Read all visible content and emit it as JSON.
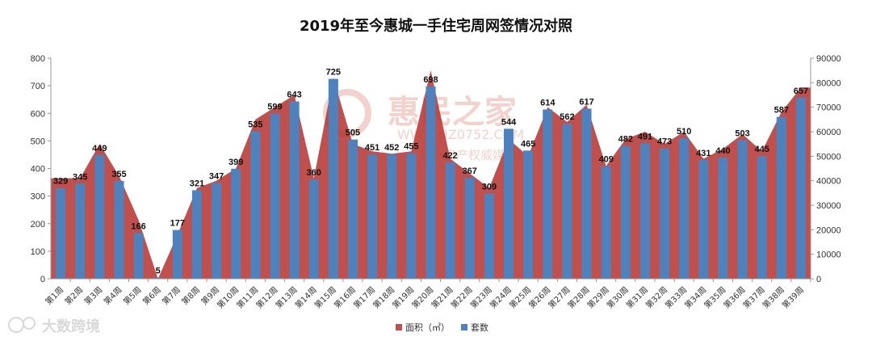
{
  "title": "2019年至今惠城一手住宅周网签情况对照",
  "watermark": {
    "brand": "惠民之家",
    "url": "WWW.HZ0752.COM",
    "slogan": "惠州房产权威媒体",
    "corner": "大数跨境"
  },
  "colors": {
    "area": "#c0504d",
    "bar": "#4f81bd",
    "watermark": "#cc3322"
  },
  "chart_data": {
    "type": "bar",
    "title": "2019年至今惠城一手住宅周网签情况对照",
    "categories": [
      "第1周",
      "第2周",
      "第3周",
      "第4周",
      "第5周",
      "第6周",
      "第7周",
      "第8周",
      "第9周",
      "第10周",
      "第11周",
      "第12周",
      "第13周",
      "第14周",
      "第15周",
      "第16周",
      "第17周",
      "第18周",
      "第19周",
      "第20周",
      "第21周",
      "第22周",
      "第23周",
      "第24周",
      "第25周",
      "第26周",
      "第27周",
      "第28周",
      "第29周",
      "第30周",
      "第31周",
      "第32周",
      "第33周",
      "第34周",
      "第35周",
      "第36周",
      "第37周",
      "第38周",
      "第39周"
    ],
    "series": [
      {
        "name": "面积（㎡）",
        "type": "area",
        "axis": "right",
        "values": [
          41000,
          41000,
          55000,
          42000,
          24000,
          0,
          18000,
          37000,
          40000,
          45000,
          65000,
          70000,
          75000,
          41000,
          82000,
          55000,
          52000,
          51000,
          52000,
          85000,
          49000,
          43000,
          37000,
          57000,
          50000,
          70000,
          64000,
          71000,
          46000,
          57000,
          60000,
          55000,
          60000,
          49000,
          53000,
          59000,
          52000,
          68000,
          78000
        ]
      },
      {
        "name": "套数",
        "type": "bar",
        "axis": "left",
        "values": [
          329,
          345,
          449,
          355,
          166,
          5,
          177,
          321,
          347,
          399,
          535,
          599,
          643,
          360,
          725,
          505,
          451,
          452,
          455,
          698,
          422,
          367,
          309,
          544,
          465,
          614,
          562,
          617,
          409,
          482,
          491,
          473,
          510,
          431,
          440,
          503,
          445,
          587,
          657
        ]
      }
    ],
    "left_axis": {
      "range": [
        0,
        800
      ],
      "ticks": [
        "0",
        "100",
        "200",
        "300",
        "400",
        "500",
        "600",
        "700",
        "800"
      ]
    },
    "right_axis": {
      "range": [
        0,
        90000
      ],
      "ticks": [
        "0",
        "10000",
        "20000",
        "30000",
        "40000",
        "50000",
        "60000",
        "70000",
        "80000",
        "90000"
      ]
    },
    "legend": {
      "position": "bottom",
      "items": [
        "面积（㎡）",
        "套数"
      ]
    },
    "grid": false
  }
}
